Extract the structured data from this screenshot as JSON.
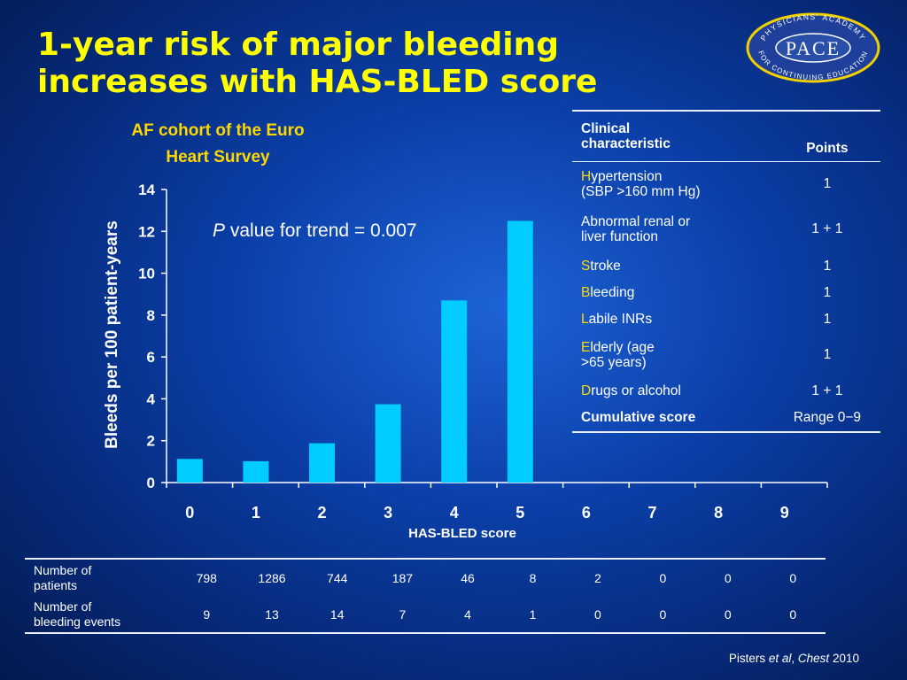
{
  "slide": {
    "title_line1": "1-year risk of major bleeding",
    "title_line2": "increases with HAS-BLED score",
    "chart_title_line1": "AF cohort of the Euro",
    "chart_title_line2": "Heart Survey",
    "p_value_italic": "P",
    "p_value_rest": " value for trend = 0.007",
    "citation_author": "Pisters ",
    "citation_etal": "et al",
    "citation_comma": ", ",
    "citation_journal": "Chest",
    "citation_year": " 2010"
  },
  "logo": {
    "top_text": "PHYSICIANS' ACADEMY",
    "main_text": "PACE",
    "bottom_text": "FOR CONTINUING EDUCATION"
  },
  "chart_data": {
    "type": "bar",
    "xlabel": "HAS-BLED score",
    "ylabel": "Bleeds per 100 patient-years",
    "categories": [
      "0",
      "1",
      "2",
      "3",
      "4",
      "5",
      "6",
      "7",
      "8",
      "9"
    ],
    "values": [
      1.13,
      1.02,
      1.88,
      3.74,
      8.7,
      12.5,
      null,
      null,
      null,
      null
    ],
    "ylim": [
      0,
      14
    ],
    "yticks": [
      "0",
      "2",
      "4",
      "6",
      "8",
      "10",
      "12",
      "14"
    ],
    "bar_color": "#00ccff",
    "grid": false
  },
  "clinical_table": {
    "header_characteristic_line1": "Clinical",
    "header_characteristic_line2": "characteristic",
    "header_points": "Points",
    "rows": [
      {
        "first": "H",
        "rest_line1": "ypertension",
        "line2": "(SBP >160 mm Hg)",
        "points": "1"
      },
      {
        "first": "",
        "rest_line1": "Abnormal renal or",
        "line2": "liver function",
        "points": "1 + 1"
      },
      {
        "first": "S",
        "rest_line1": "troke",
        "line2": "",
        "points": "1"
      },
      {
        "first": "B",
        "rest_line1": "leeding",
        "line2": "",
        "points": "1"
      },
      {
        "first": "L",
        "rest_line1": "abile INRs",
        "line2": "",
        "points": "1"
      },
      {
        "first": "E",
        "rest_line1": "lderly (age",
        "line2": ">65 years)",
        "points": "1"
      },
      {
        "first": "D",
        "rest_line1": "rugs or alcohol",
        "line2": "",
        "points": "1 + 1"
      }
    ],
    "cumulative_label": "Cumulative score",
    "cumulative_value": "Range 0−9"
  },
  "bottom_table": {
    "row1_label_line1": "Number of",
    "row1_label_line2": "patients",
    "row1_values": [
      "798",
      "1286",
      "744",
      "187",
      "46",
      "8",
      "2",
      "0",
      "0",
      "0"
    ],
    "row2_label_line1": "Number of",
    "row2_label_line2": "bleeding events",
    "row2_values": [
      "9",
      "13",
      "14",
      "7",
      "4",
      "1",
      "0",
      "0",
      "0",
      "0"
    ]
  }
}
